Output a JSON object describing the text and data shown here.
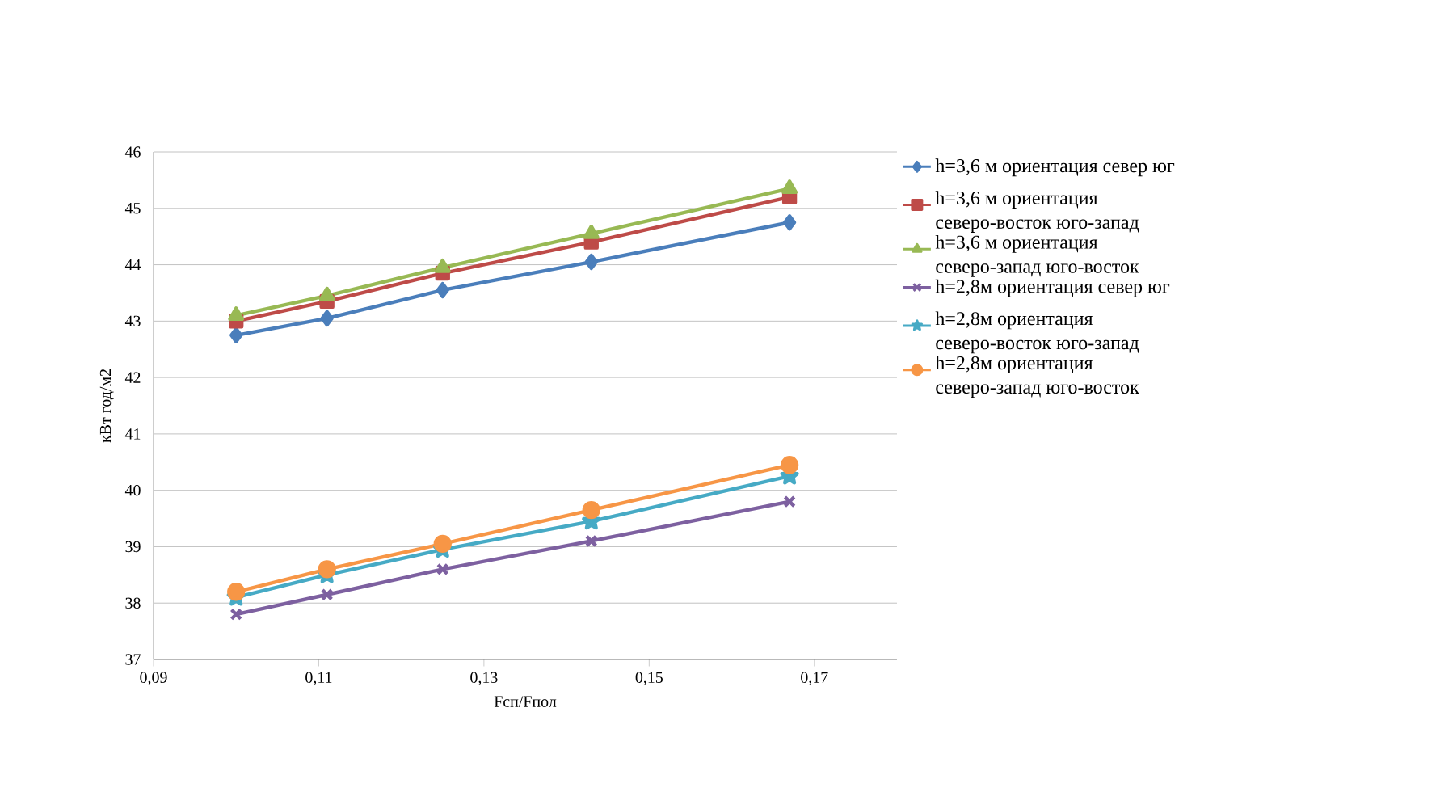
{
  "chart_data": {
    "type": "line",
    "xlabel": "Fсп/Fпол",
    "ylabel": "кВт год/м2",
    "x": [
      0.1,
      0.111,
      0.125,
      0.143,
      0.167
    ],
    "xlim": [
      0.09,
      0.18
    ],
    "xticks": [
      {
        "value": 0.09,
        "label": "0,09"
      },
      {
        "value": 0.11,
        "label": "0,11"
      },
      {
        "value": 0.13,
        "label": "0,13"
      },
      {
        "value": 0.15,
        "label": "0,15"
      },
      {
        "value": 0.17,
        "label": "0,17"
      }
    ],
    "ylim": [
      37,
      46
    ],
    "yticks": [
      37,
      38,
      39,
      40,
      41,
      42,
      43,
      44,
      45,
      46
    ],
    "grid": "y",
    "legend": "right",
    "series": [
      {
        "name": "h=3,6 м ориентация север юг",
        "color": "#4a7ebb",
        "marker": "diamond",
        "values": [
          42.75,
          43.05,
          43.55,
          44.05,
          44.75
        ]
      },
      {
        "name": "h=3,6 м ориентация северо-восток юго-запад",
        "color": "#be4b48",
        "marker": "square",
        "values": [
          43.0,
          43.35,
          43.85,
          44.4,
          45.2
        ]
      },
      {
        "name": "h=3,6 м ориентация северо-запад юго-восток",
        "color": "#98b954",
        "marker": "triangle",
        "values": [
          43.1,
          43.45,
          43.95,
          44.55,
          45.35
        ]
      },
      {
        "name": "h=2,8м ориентация север юг",
        "color": "#7d60a0",
        "marker": "cross",
        "values": [
          37.8,
          38.15,
          38.6,
          39.1,
          39.8
        ]
      },
      {
        "name": "h=2,8м ориентация северо-восток юго-запад",
        "color": "#46aac5",
        "marker": "star",
        "values": [
          38.1,
          38.5,
          38.95,
          39.45,
          40.25
        ]
      },
      {
        "name": "h=2,8м ориентация северо-запад юго-восток",
        "color": "#f79646",
        "marker": "circle",
        "values": [
          38.2,
          38.6,
          39.05,
          39.65,
          40.45
        ]
      }
    ]
  }
}
